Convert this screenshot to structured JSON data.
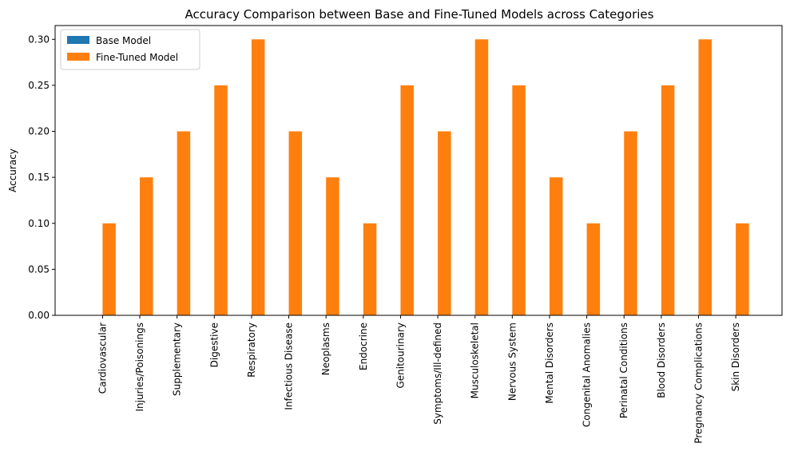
{
  "chart_data": {
    "type": "bar",
    "title": "Accuracy Comparison between Base and Fine-Tuned Models across Categories",
    "xlabel": "",
    "ylabel": "Accuracy",
    "ylim": [
      0,
      0.315
    ],
    "yticks": [
      "0.00",
      "0.05",
      "0.10",
      "0.15",
      "0.20",
      "0.25",
      "0.30"
    ],
    "grid": false,
    "legend_position": "top-left",
    "categories": [
      "Cardiovascular",
      "Injuries/Poisonings",
      "Supplementary",
      "Digestive",
      "Respiratory",
      "Infectious Disease",
      "Neoplasms",
      "Endocrine",
      "Genitourinary",
      "Symptoms/Ill-defined",
      "Musculoskeletal",
      "Nervous System",
      "Mental Disorders",
      "Congenital Anomalies",
      "Perinatal Conditions",
      "Blood Disorders",
      "Pregnancy Complications",
      "Skin Disorders"
    ],
    "series": [
      {
        "name": "Base Model",
        "color": "#1f77b4",
        "values": [
          0,
          0,
          0,
          0,
          0,
          0,
          0,
          0,
          0,
          0,
          0,
          0,
          0,
          0,
          0,
          0,
          0,
          0
        ]
      },
      {
        "name": "Fine-Tuned Model",
        "color": "#ff7f0e",
        "values": [
          0.1,
          0.15,
          0.2,
          0.25,
          0.3,
          0.2,
          0.15,
          0.1,
          0.25,
          0.2,
          0.3,
          0.25,
          0.15,
          0.1,
          0.2,
          0.25,
          0.3,
          0.1
        ]
      }
    ]
  }
}
